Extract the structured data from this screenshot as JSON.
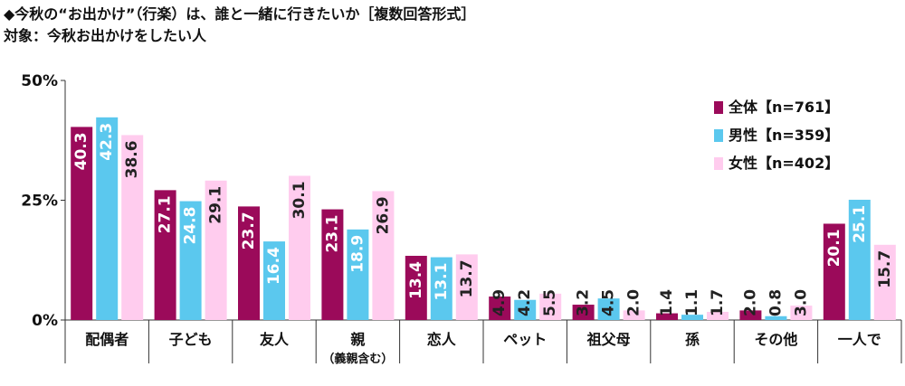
{
  "title": "◆今秋の“お出かけ”（行楽）は、誰と一緒に行きたいか［複数回答形式］",
  "subtitle": "対象：今秋お出かけをしたい人",
  "chart_data": {
    "type": "bar",
    "categories": [
      "配偶者",
      "子ども",
      "友人",
      "親",
      "恋人",
      "ペット",
      "祖父母",
      "孫",
      "その他",
      "一人で"
    ],
    "category_sublabels": {
      "親": "（義親含む）"
    },
    "series": [
      {
        "name": "全体【n=761】",
        "color": "#9B0A5A",
        "values": [
          40.3,
          27.1,
          23.7,
          23.1,
          13.4,
          4.9,
          3.2,
          1.4,
          2.0,
          20.1
        ]
      },
      {
        "name": "男性【n=359】",
        "color": "#5BC8EE",
        "values": [
          42.3,
          24.8,
          16.4,
          18.9,
          13.1,
          4.2,
          4.5,
          1.1,
          0.8,
          25.1
        ]
      },
      {
        "name": "女性【n=402】",
        "color": "#FFCCEE",
        "values": [
          38.6,
          29.1,
          30.1,
          26.9,
          13.7,
          5.5,
          2.0,
          1.7,
          3.0,
          15.7
        ]
      }
    ],
    "ylim": [
      0,
      50
    ],
    "yticks": [
      "0%",
      "25%",
      "50%"
    ],
    "legend_position": "top-right",
    "grid": false
  }
}
